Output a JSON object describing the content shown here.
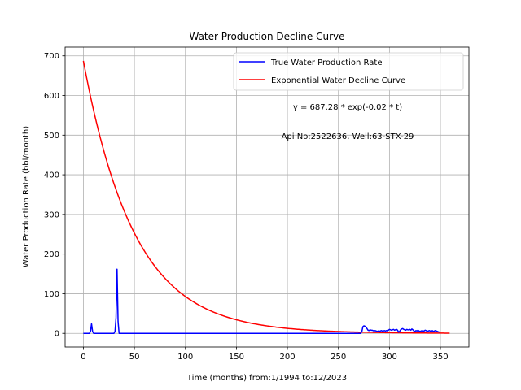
{
  "chart_data": {
    "type": "line",
    "title": "Water Production Decline Curve",
    "xlabel": "Time (months) from:1/1994 to:12/2023",
    "ylabel": "Water Production Rate (bbl/month)",
    "xlim": [
      -17.9,
      377.9
    ],
    "ylim": [
      -34.4,
      722.0
    ],
    "xticks": [
      0,
      50,
      100,
      150,
      200,
      250,
      300,
      350
    ],
    "yticks": [
      0,
      100,
      200,
      300,
      400,
      500,
      600,
      700
    ],
    "grid": true,
    "legend_position": "top-right",
    "annotations": [
      "y = 687.28 * exp(-0.02 * t)",
      "Api No:2522636, Well:63-STX-29"
    ],
    "series": [
      {
        "name": "True Water Production Rate",
        "color": "#0000ff",
        "x": [
          0,
          6,
          7,
          8,
          9,
          10,
          20,
          30,
          31,
          32,
          33,
          34,
          35,
          50,
          100,
          150,
          200,
          250,
          270,
          272,
          273,
          274,
          275,
          276,
          277,
          278,
          279,
          280,
          281,
          282,
          283,
          284,
          285,
          286,
          287,
          288,
          289,
          290,
          291,
          292,
          293,
          294,
          295,
          296,
          297,
          298,
          299,
          300,
          301,
          302,
          303,
          304,
          305,
          306,
          307,
          308,
          309,
          310,
          311,
          312,
          313,
          314,
          315,
          316,
          317,
          318,
          319,
          320,
          321,
          322,
          323,
          324,
          325,
          326,
          327,
          328,
          329,
          330,
          331,
          332,
          333,
          334,
          335,
          336,
          337,
          338,
          339,
          340,
          341,
          342,
          343,
          344,
          345,
          346,
          347,
          348,
          349
        ],
        "y": [
          0,
          0,
          5,
          24,
          5,
          0,
          0,
          0,
          5,
          40,
          162,
          30,
          0,
          0,
          0,
          0,
          0,
          0,
          0,
          0,
          5,
          17,
          19,
          18,
          16,
          12,
          8,
          7,
          9,
          8,
          8,
          7,
          6,
          7,
          6,
          5,
          6,
          5,
          6,
          7,
          6,
          6,
          7,
          6,
          7,
          6,
          8,
          10,
          9,
          8,
          9,
          10,
          8,
          9,
          10,
          8,
          3,
          5,
          9,
          11,
          12,
          10,
          9,
          8,
          10,
          9,
          9,
          10,
          8,
          11,
          9,
          6,
          5,
          7,
          6,
          8,
          6,
          5,
          6,
          7,
          6,
          6,
          8,
          7,
          5,
          6,
          7,
          6,
          5,
          7,
          5,
          6,
          7,
          6,
          5,
          4,
          3
        ]
      },
      {
        "name": "Exponential Water Decline Curve",
        "color": "#ff0000",
        "a": 687.28,
        "b": 0.02,
        "x_start": 0,
        "x_end": 359
      }
    ]
  }
}
